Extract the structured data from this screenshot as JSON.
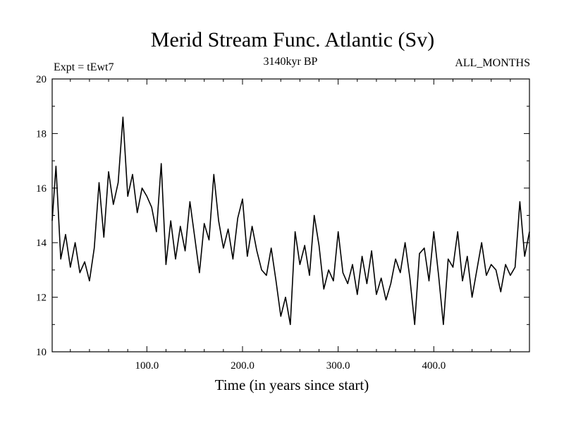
{
  "chart_data": {
    "type": "line",
    "title": "Merid Stream Func. Atlantic (Sv)",
    "subtitle_left": "Expt = tEwt7",
    "subtitle_center": "3140kyr BP",
    "subtitle_right": "ALL_MONTHS",
    "xlabel": "Time (in years since start)",
    "ylabel": "",
    "xlim": [
      1,
      500
    ],
    "ylim": [
      10,
      20
    ],
    "x_ticks": [
      100,
      200,
      300,
      400
    ],
    "x_tick_labels": [
      "100.0",
      "200.0",
      "300.0",
      "400.0"
    ],
    "y_ticks": [
      10,
      12,
      14,
      16,
      18,
      20
    ],
    "y_tick_labels": [
      "10",
      "12",
      "14",
      "16",
      "18",
      "20"
    ],
    "series": [
      {
        "name": "Merid Stream Func. Atlantic",
        "x": [
          1,
          5,
          10,
          15,
          20,
          25,
          30,
          35,
          40,
          45,
          50,
          55,
          60,
          65,
          70,
          75,
          80,
          85,
          90,
          95,
          100,
          105,
          110,
          115,
          120,
          125,
          130,
          135,
          140,
          145,
          150,
          155,
          160,
          165,
          170,
          175,
          180,
          185,
          190,
          195,
          200,
          205,
          210,
          215,
          220,
          225,
          230,
          235,
          240,
          245,
          250,
          255,
          260,
          265,
          270,
          275,
          280,
          285,
          290,
          295,
          300,
          305,
          310,
          315,
          320,
          325,
          330,
          335,
          340,
          345,
          350,
          355,
          360,
          365,
          370,
          375,
          380,
          385,
          390,
          395,
          400,
          405,
          410,
          415,
          420,
          425,
          430,
          435,
          440,
          445,
          450,
          455,
          460,
          465,
          470,
          475,
          480,
          485,
          490,
          495,
          500
        ],
        "values": [
          14.8,
          16.8,
          13.4,
          14.3,
          13.1,
          14.0,
          12.9,
          13.3,
          12.6,
          13.8,
          16.2,
          14.2,
          16.6,
          15.4,
          16.2,
          18.6,
          15.7,
          16.5,
          15.1,
          16.0,
          15.7,
          15.3,
          14.4,
          16.9,
          13.2,
          14.8,
          13.4,
          14.6,
          13.7,
          15.5,
          14.2,
          12.9,
          14.7,
          14.1,
          16.5,
          14.8,
          13.8,
          14.5,
          13.4,
          14.9,
          15.6,
          13.5,
          14.6,
          13.7,
          13.0,
          12.8,
          13.8,
          12.6,
          11.3,
          12.0,
          11.0,
          14.4,
          13.2,
          13.9,
          12.8,
          15.0,
          13.9,
          12.3,
          13.0,
          12.6,
          14.4,
          12.9,
          12.5,
          13.2,
          12.1,
          13.5,
          12.5,
          13.7,
          12.1,
          12.7,
          11.9,
          12.5,
          13.4,
          12.9,
          14.0,
          12.7,
          11.0,
          13.6,
          13.8,
          12.6,
          14.4,
          12.8,
          11.0,
          13.4,
          13.1,
          14.4,
          12.6,
          13.5,
          12.0,
          13.0,
          14.0,
          12.8,
          13.2,
          13.0,
          12.2,
          13.2,
          12.8,
          13.1,
          15.5,
          13.5,
          14.4
        ]
      }
    ]
  }
}
